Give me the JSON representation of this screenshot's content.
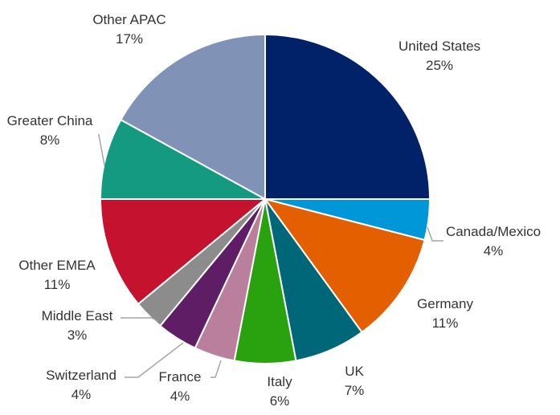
{
  "chart_data": {
    "type": "pie",
    "title": "",
    "start_angle_deg": 0,
    "direction": "clockwise",
    "slices": [
      {
        "name": "United States",
        "value": 25,
        "label": "25%",
        "color": "#012169"
      },
      {
        "name": "Canada/Mexico",
        "value": 4,
        "label": "4%",
        "color": "#0097d9"
      },
      {
        "name": "Germany",
        "value": 11,
        "label": "11%",
        "color": "#e35f00"
      },
      {
        "name": "UK",
        "value": 7,
        "label": "7%",
        "color": "#006778"
      },
      {
        "name": "Italy",
        "value": 6,
        "label": "6%",
        "color": "#2aa10f"
      },
      {
        "name": "France",
        "value": 4,
        "label": "4%",
        "color": "#b97f9c"
      },
      {
        "name": "Switzerland",
        "value": 4,
        "label": "4%",
        "color": "#5f1d66"
      },
      {
        "name": "Middle East",
        "value": 3,
        "label": "3%",
        "color": "#8c8c8c"
      },
      {
        "name": "Other EMEA",
        "value": 11,
        "label": "11%",
        "color": "#c4122f"
      },
      {
        "name": "Greater China",
        "value": 8,
        "label": "8%",
        "color": "#139a80"
      },
      {
        "name": "Other APAC",
        "value": 17,
        "label": "17%",
        "color": "#8093b6"
      }
    ]
  }
}
